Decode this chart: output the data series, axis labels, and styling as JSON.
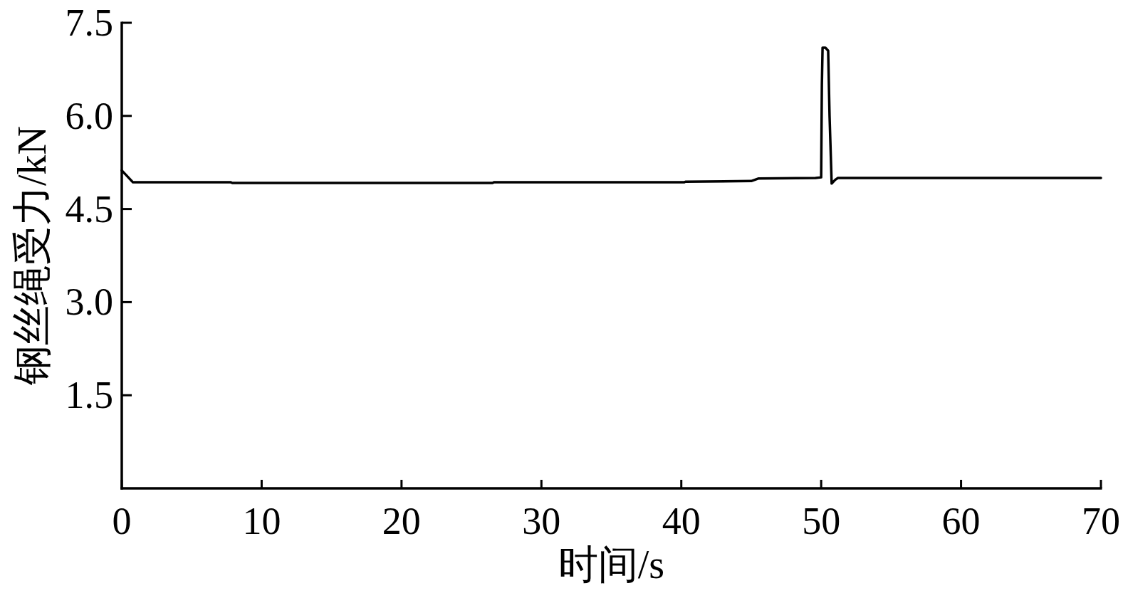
{
  "chart_data": {
    "type": "line",
    "xlabel": "时间/s",
    "ylabel": "钢丝绳受力/kN",
    "xlim": [
      0,
      70
    ],
    "xticks": [
      0,
      10,
      20,
      30,
      40,
      50,
      60,
      70
    ],
    "ylim": [
      0,
      7.5
    ],
    "yticks": [
      1.5,
      {
        "value": 3,
        "label": "3.0"
      },
      4.5,
      {
        "value": 6,
        "label": "6.0"
      },
      7.5
    ],
    "series": [
      {
        "color": "#000000",
        "x": [
          0,
          0.3,
          0.8,
          7.8,
          7.9,
          26.5,
          26.6,
          40.2,
          40.3,
          45.0,
          45.5,
          49.6,
          50.0,
          50.05,
          50.1,
          50.3,
          50.5,
          50.6,
          50.75,
          51.0,
          51.2,
          70
        ],
        "values": [
          5.12,
          5.05,
          4.93,
          4.93,
          4.92,
          4.92,
          4.93,
          4.93,
          4.94,
          4.95,
          4.99,
          5.0,
          5.01,
          6.5,
          7.1,
          7.1,
          7.05,
          6.0,
          4.91,
          4.97,
          5.0,
          5.0
        ]
      }
    ]
  }
}
